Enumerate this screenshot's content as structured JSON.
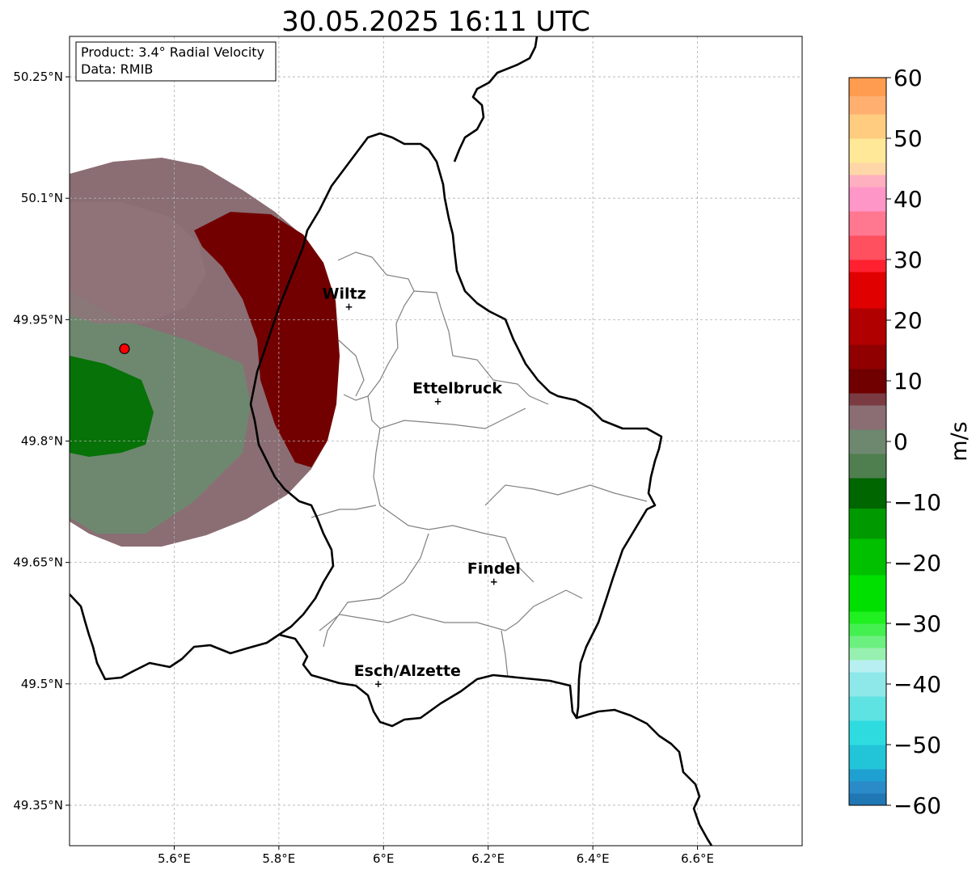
{
  "title": "30.05.2025 16:11 UTC",
  "info_box": {
    "product": "Product: 3.4° Radial Velocity",
    "data": "Data: RMIB"
  },
  "map": {
    "lon_range": [
      5.4,
      6.8
    ],
    "lat_range": [
      49.3,
      50.3
    ],
    "lon_ticks": [
      {
        "value": 5.6,
        "label": "5.6°E"
      },
      {
        "value": 5.8,
        "label": "5.8°E"
      },
      {
        "value": 6.0,
        "label": "6°E"
      },
      {
        "value": 6.2,
        "label": "6.2°E"
      },
      {
        "value": 6.4,
        "label": "6.4°E"
      },
      {
        "value": 6.6,
        "label": "6.6°E"
      }
    ],
    "lat_ticks": [
      {
        "value": 50.25,
        "label": "50.25°N"
      },
      {
        "value": 50.1,
        "label": "50.1°N"
      },
      {
        "value": 49.95,
        "label": "49.95°N"
      },
      {
        "value": 49.8,
        "label": "49.8°N"
      },
      {
        "value": 49.65,
        "label": "49.65°N"
      },
      {
        "value": 49.5,
        "label": "49.5°N"
      },
      {
        "value": 49.35,
        "label": "49.35°N"
      }
    ],
    "grid": true,
    "radar_site": {
      "lon": 5.505,
      "lat": 49.914,
      "color": "#ff0000"
    },
    "cities": [
      {
        "name": "Wiltz",
        "lon": 5.934,
        "lat": 49.966
      },
      {
        "name": "Ettelbruck",
        "lon": 6.104,
        "lat": 49.849
      },
      {
        "name": "Findel",
        "lon": 6.211,
        "lat": 49.626
      },
      {
        "name": "Esch/Alzette",
        "lon": 5.99,
        "lat": 49.5
      }
    ]
  },
  "colorbar": {
    "label": "m/s",
    "min": -60,
    "max": 60,
    "ticks": [
      {
        "value": 60,
        "label": "60"
      },
      {
        "value": 50,
        "label": "50"
      },
      {
        "value": 40,
        "label": "40"
      },
      {
        "value": 30,
        "label": "30"
      },
      {
        "value": 20,
        "label": "20"
      },
      {
        "value": 10,
        "label": "10"
      },
      {
        "value": 0,
        "label": "0"
      },
      {
        "value": -10,
        "label": "−10"
      },
      {
        "value": -20,
        "label": "−20"
      },
      {
        "value": -30,
        "label": "−30"
      },
      {
        "value": -40,
        "label": "−40"
      },
      {
        "value": -50,
        "label": "−50"
      },
      {
        "value": -60,
        "label": "−60"
      }
    ],
    "segments": [
      {
        "from": -60,
        "to": -58,
        "color": "#1f77b4"
      },
      {
        "from": -58,
        "to": -56,
        "color": "#2a8bc8"
      },
      {
        "from": -56,
        "to": -54,
        "color": "#1ea0d0"
      },
      {
        "from": -54,
        "to": -50,
        "color": "#22c4d8"
      },
      {
        "from": -50,
        "to": -46,
        "color": "#2edce0"
      },
      {
        "from": -46,
        "to": -42,
        "color": "#5ee2e2"
      },
      {
        "from": -42,
        "to": -38,
        "color": "#8ee8ea"
      },
      {
        "from": -38,
        "to": -36,
        "color": "#b8f0f2"
      },
      {
        "from": -36,
        "to": -34,
        "color": "#98f0b0"
      },
      {
        "from": -34,
        "to": -32,
        "color": "#6cf080"
      },
      {
        "from": -32,
        "to": -30,
        "color": "#44f050"
      },
      {
        "from": -30,
        "to": -28,
        "color": "#20f020"
      },
      {
        "from": -28,
        "to": -22,
        "color": "#00e000"
      },
      {
        "from": -22,
        "to": -16,
        "color": "#00c000"
      },
      {
        "from": -16,
        "to": -11,
        "color": "#009a00"
      },
      {
        "from": -11,
        "to": -6,
        "color": "#006600"
      },
      {
        "from": -6,
        "to": -2,
        "color": "#4f7e4f"
      },
      {
        "from": -2,
        "to": 2,
        "color": "#6e8870"
      },
      {
        "from": 2,
        "to": 6,
        "color": "#8a6e74"
      },
      {
        "from": 6,
        "to": 8,
        "color": "#7a3b42"
      },
      {
        "from": 8,
        "to": 12,
        "color": "#700000"
      },
      {
        "from": 12,
        "to": 16,
        "color": "#900000"
      },
      {
        "from": 16,
        "to": 22,
        "color": "#b00000"
      },
      {
        "from": 22,
        "to": 28,
        "color": "#e00000"
      },
      {
        "from": 28,
        "to": 30,
        "color": "#ff2030"
      },
      {
        "from": 30,
        "to": 34,
        "color": "#ff5060"
      },
      {
        "from": 34,
        "to": 38,
        "color": "#ff7890"
      },
      {
        "from": 38,
        "to": 42,
        "color": "#ff96c8"
      },
      {
        "from": 42,
        "to": 44,
        "color": "#ffb0c0"
      },
      {
        "from": 44,
        "to": 46,
        "color": "#ffd6a8"
      },
      {
        "from": 46,
        "to": 50,
        "color": "#ffe898"
      },
      {
        "from": 50,
        "to": 54,
        "color": "#ffcc80"
      },
      {
        "from": 54,
        "to": 57,
        "color": "#ffb070"
      },
      {
        "from": 57,
        "to": 60,
        "color": "#ff9c50"
      }
    ]
  }
}
